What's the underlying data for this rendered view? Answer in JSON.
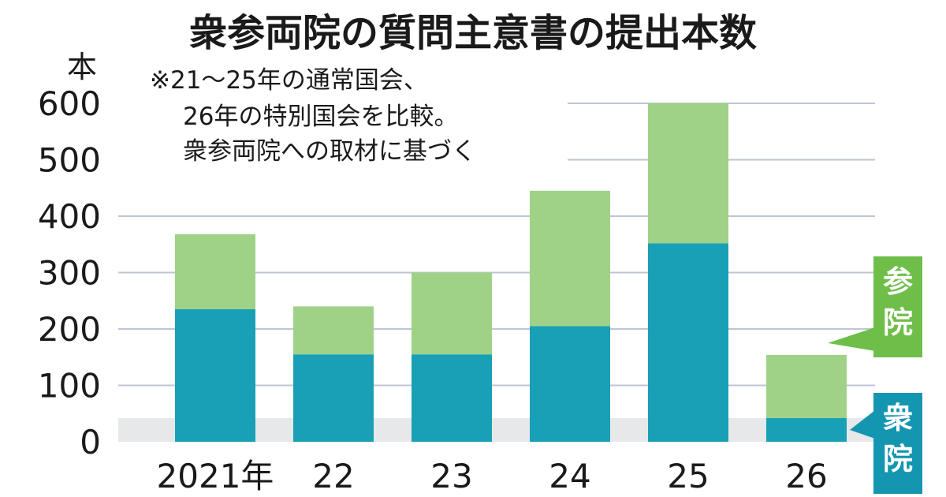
{
  "colors": {
    "shu": "#19a0b7",
    "san": "#9fd287",
    "grid": "#bcc6d3",
    "band": "#e6e8ea",
    "san_label_bg": "#6fbe4a",
    "shu_label_bg": "#1596b0"
  },
  "chart_data": {
    "type": "bar",
    "stacked": true,
    "title": "衆参両院の質問主意書の提出本数",
    "note_lines": [
      "※21～25年の通常国会、",
      "26年の特別国会を比較。",
      "衆参両院への取材に基づく"
    ],
    "ylabel": "本",
    "ylim": [
      0,
      600
    ],
    "yticks": [
      "0",
      "100",
      "200",
      "300",
      "400",
      "500",
      "600"
    ],
    "categories": [
      "2021年",
      "22",
      "23",
      "24",
      "25",
      "26"
    ],
    "series": [
      {
        "name": "衆院",
        "color": "#19a0b7",
        "values": [
          235,
          155,
          155,
          205,
          352,
          42
        ]
      },
      {
        "name": "参院",
        "color": "#9fd287",
        "values": [
          133,
          85,
          145,
          240,
          248,
          112
        ]
      }
    ],
    "legend_position": "right",
    "grid": true
  }
}
